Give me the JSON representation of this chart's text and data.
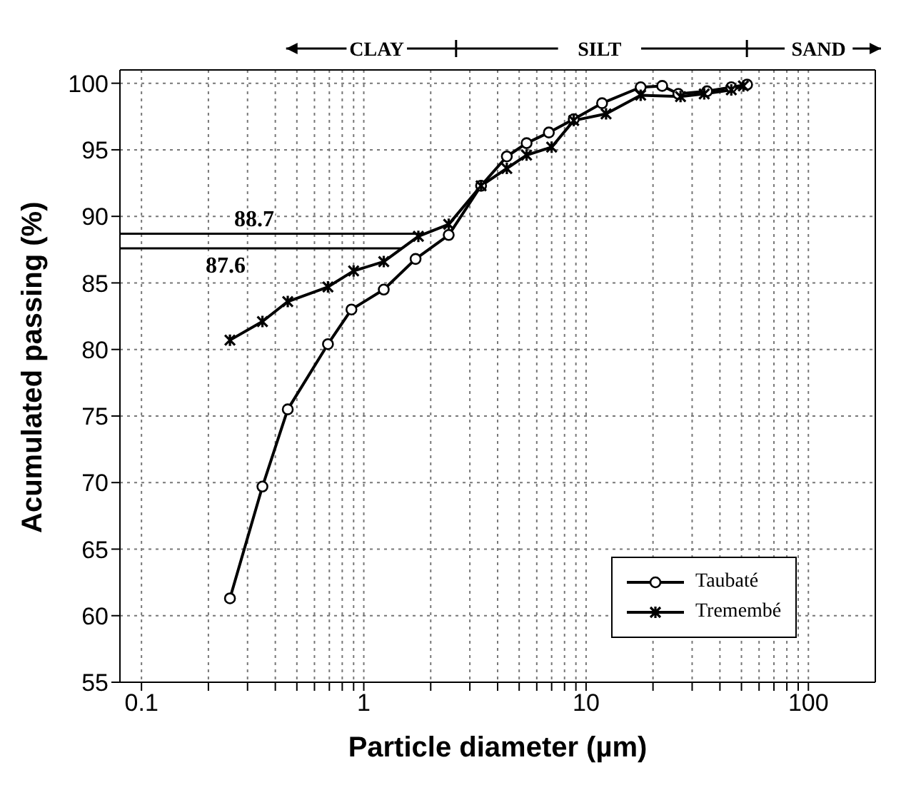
{
  "chart_data": {
    "type": "line",
    "xlabel": "Particle diameter (µm)",
    "ylabel": "Acumulated passing (%)",
    "log": "x",
    "xlim": [
      0.08,
      200
    ],
    "ylim": [
      55,
      101
    ],
    "xticks": [
      0.1,
      {
        "value": 0.2,
        "label": null
      },
      {
        "value": 0.3,
        "label": null
      },
      {
        "value": 0.4,
        "label": null
      },
      {
        "value": 0.5,
        "label": null
      },
      {
        "value": 0.6,
        "label": null
      },
      {
        "value": 0.7,
        "label": null
      },
      {
        "value": 0.8,
        "label": null
      },
      {
        "value": 0.9,
        "label": null
      },
      1,
      {
        "value": 2,
        "label": null
      },
      {
        "value": 3,
        "label": null
      },
      {
        "value": 4,
        "label": null
      },
      {
        "value": 5,
        "label": null
      },
      {
        "value": 6,
        "label": null
      },
      {
        "value": 7,
        "label": null
      },
      {
        "value": 8,
        "label": null
      },
      {
        "value": 9,
        "label": null
      },
      10,
      {
        "value": 20,
        "label": null
      },
      {
        "value": 30,
        "label": null
      },
      {
        "value": 40,
        "label": null
      },
      {
        "value": 50,
        "label": null
      },
      {
        "value": 60,
        "label": null
      },
      {
        "value": 70,
        "label": null
      },
      {
        "value": 80,
        "label": null
      },
      {
        "value": 90,
        "label": null
      },
      100
    ],
    "yticks": [
      55,
      60,
      65,
      70,
      75,
      80,
      85,
      90,
      95,
      100
    ],
    "grid": true,
    "legend": "bottom right",
    "series": [
      {
        "name": "Taubaté",
        "color": "#000000",
        "marker": "circle",
        "x": [
          0.25,
          0.35,
          0.455,
          0.69,
          0.88,
          1.23,
          1.71,
          2.41,
          3.37,
          4.4,
          5.4,
          6.8,
          8.8,
          11.8,
          17.6,
          22,
          26,
          35,
          45,
          53
        ],
        "values": [
          61.3,
          69.7,
          75.5,
          80.4,
          83.0,
          84.5,
          86.8,
          88.6,
          92.3,
          94.5,
          95.5,
          96.3,
          97.3,
          98.5,
          99.7,
          99.8,
          99.2,
          99.4,
          99.7,
          99.9
        ]
      },
      {
        "name": "Tremembé",
        "color": "#000000",
        "marker": "cross",
        "x": [
          0.25,
          0.35,
          0.455,
          0.69,
          0.9,
          1.23,
          1.76,
          2.41,
          3.37,
          4.4,
          5.4,
          7.0,
          8.8,
          12.3,
          17.6,
          26.6,
          34,
          45,
          51
        ],
        "values": [
          80.7,
          82.1,
          83.6,
          84.7,
          85.9,
          86.6,
          88.5,
          89.4,
          92.3,
          93.6,
          94.6,
          95.2,
          97.2,
          97.7,
          99.1,
          99.0,
          99.2,
          99.5,
          99.8
        ]
      }
    ],
    "ref_lines": [
      {
        "axis": "y",
        "value": 88.7,
        "label": "88.7"
      },
      {
        "axis": "y",
        "value": 87.6,
        "label": "87.6"
      }
    ],
    "annotations": [
      "CLAY",
      "SILT",
      "SAND"
    ]
  }
}
